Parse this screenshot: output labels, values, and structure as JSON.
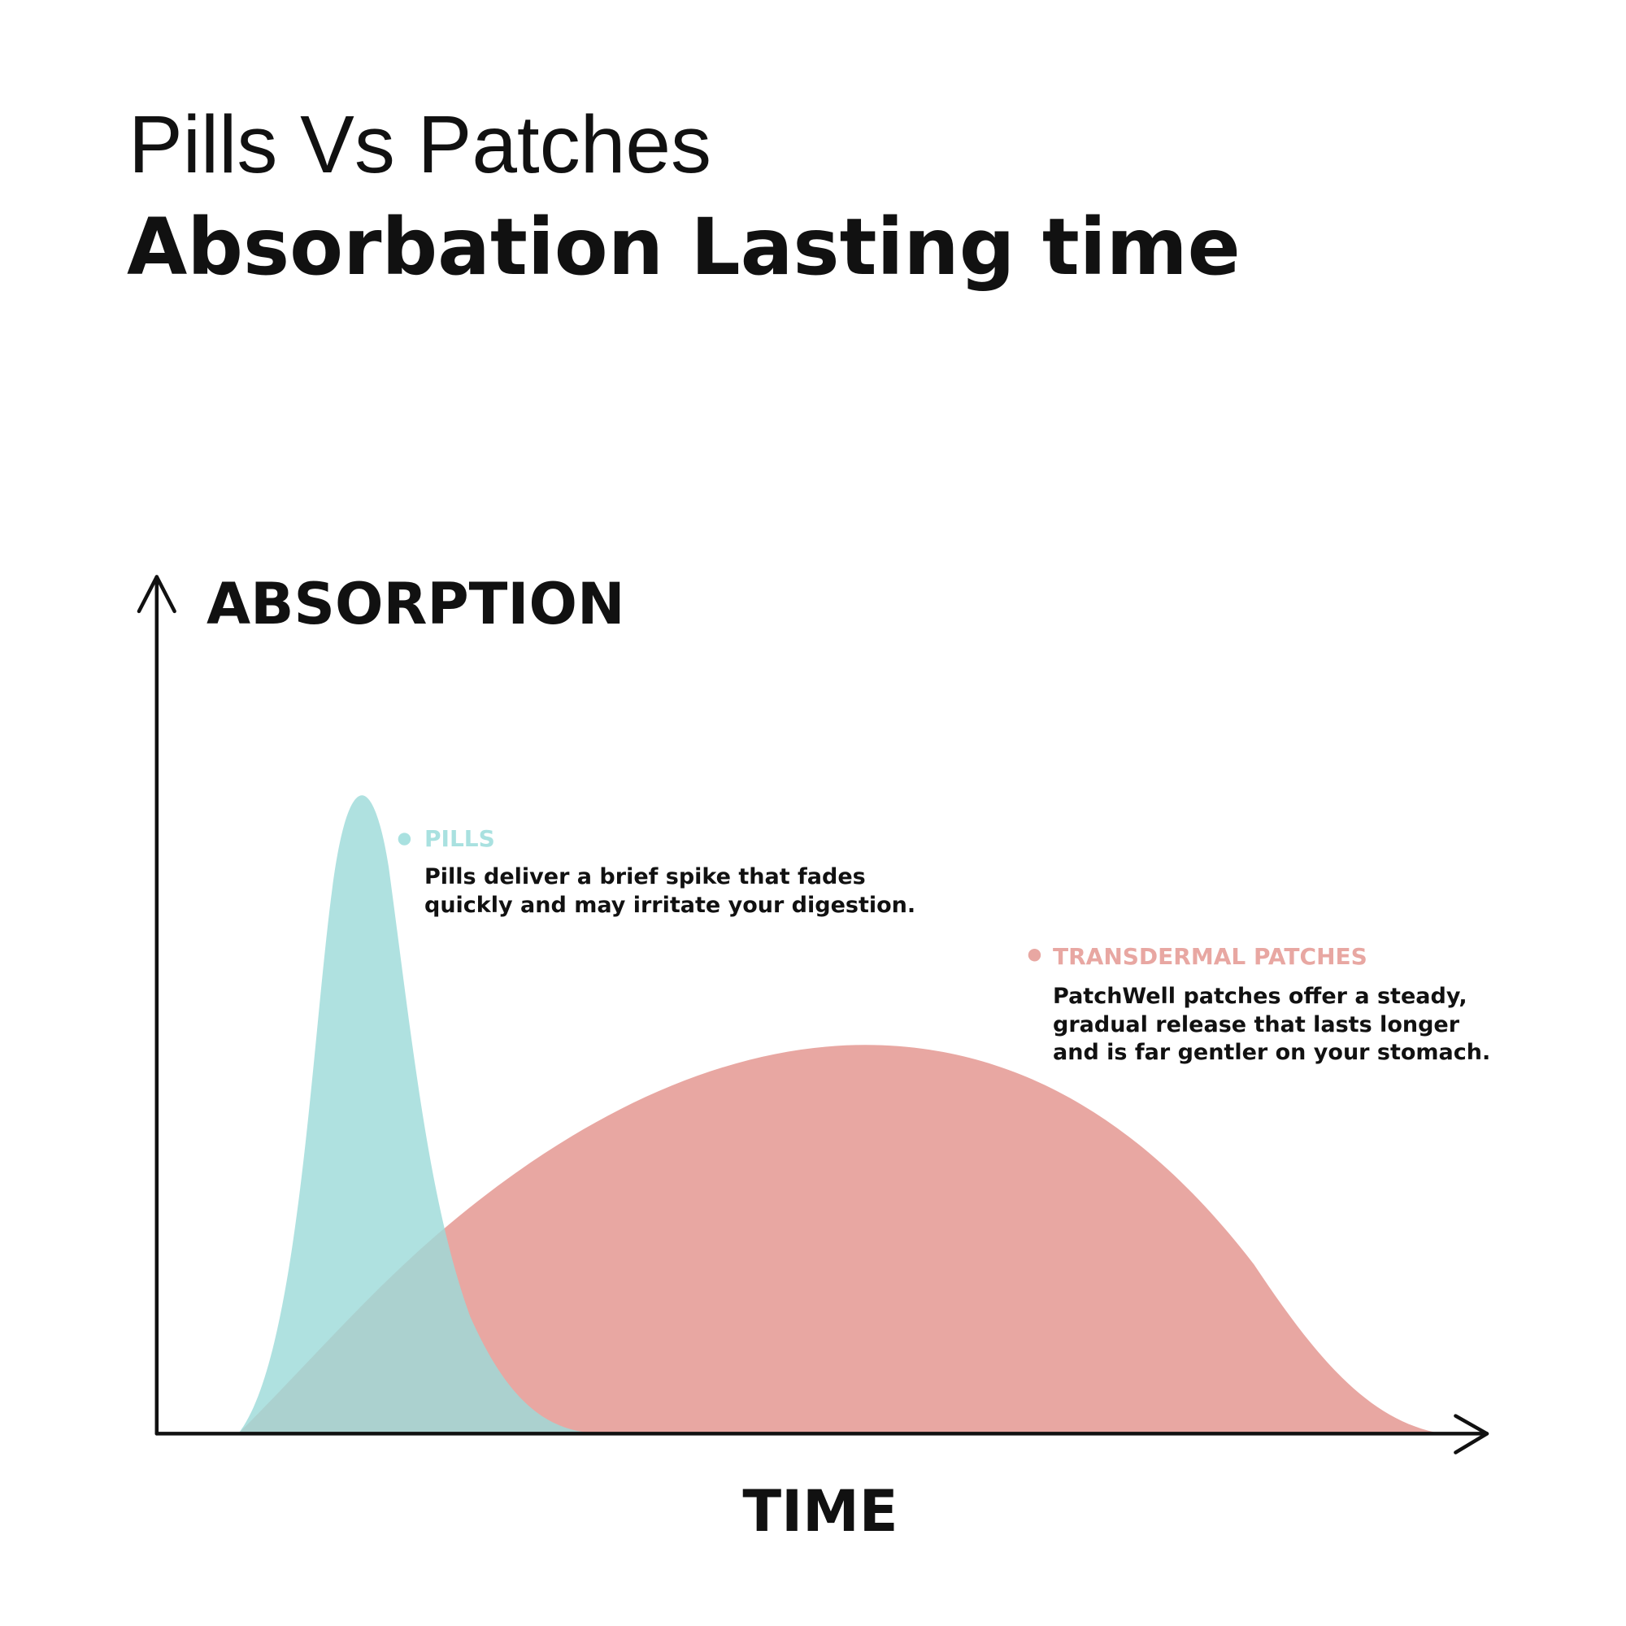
{
  "header": {
    "title": "Pills Vs Patches",
    "subtitle": "Absorbation Lasting time"
  },
  "axes": {
    "y_label": "ABSORPTION",
    "x_label": "TIME"
  },
  "annotations": [
    {
      "label": "PILLS",
      "lines": [
        "Pills deliver a brief spike that fades",
        "quickly and may irritate your digestion."
      ]
    },
    {
      "label": "TRANSDERMAL PATCHES",
      "lines": [
        "PatchWell patches offer a steady,",
        "gradual release that lasts longer",
        "and is far gentler on your stomach."
      ]
    }
  ]
}
